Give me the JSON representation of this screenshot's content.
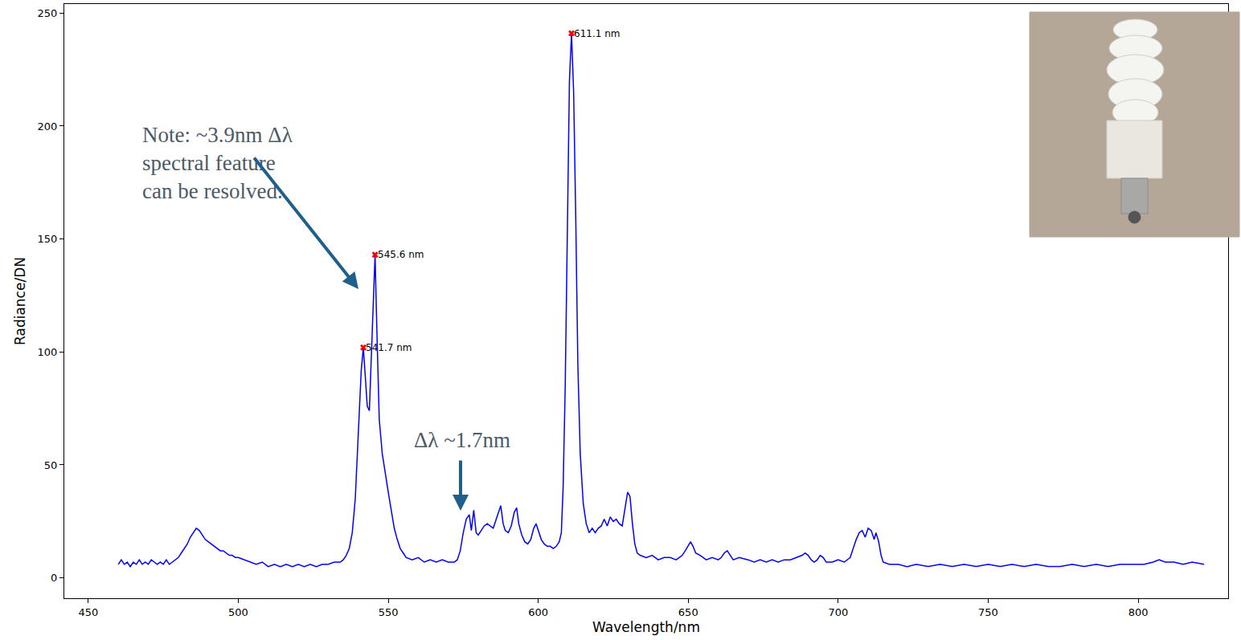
{
  "chart_data": {
    "type": "line",
    "x_label": "Wavelength/nm",
    "y_label": "Radiance/DN",
    "color": "#0000ff",
    "grid": false,
    "xlim": [
      442,
      830
    ],
    "ylim": [
      -9,
      254
    ],
    "xticks": [
      450,
      500,
      550,
      600,
      650,
      700,
      750,
      800
    ],
    "yticks": [
      0,
      50,
      100,
      150,
      200,
      250
    ],
    "x": [
      460,
      461,
      462,
      463,
      464,
      465,
      466,
      467,
      468,
      469,
      470,
      471,
      472,
      473,
      474,
      475,
      476,
      477,
      478,
      479,
      480,
      481,
      482,
      483,
      484,
      485,
      486,
      487,
      488,
      489,
      490,
      491,
      492,
      493,
      494,
      495,
      496,
      497,
      498,
      499,
      500,
      502,
      504,
      506,
      508,
      510,
      512,
      514,
      516,
      518,
      520,
      522,
      524,
      526,
      528,
      530,
      532,
      534,
      535,
      536,
      537,
      538,
      539,
      540,
      541,
      541.7,
      542.3,
      543,
      543.7,
      544.3,
      545,
      545.6,
      546.2,
      547,
      548,
      549,
      550,
      551,
      552,
      553,
      554,
      555,
      556,
      558,
      560,
      562,
      564,
      566,
      568,
      570,
      572,
      573,
      574,
      575,
      576,
      577,
      577.7,
      578.5,
      579.3,
      580,
      581,
      582,
      583,
      584,
      585,
      586,
      587,
      587.5,
      588.3,
      589,
      590,
      591,
      592,
      592.8,
      593.5,
      594.5,
      595.5,
      596.5,
      597.5,
      598.5,
      599.3,
      600,
      601,
      602,
      603,
      604,
      605,
      606,
      607,
      607.7,
      608.3,
      609,
      609.7,
      610.4,
      611.1,
      611.8,
      612.5,
      613.2,
      614,
      615,
      616,
      617,
      618,
      619,
      620,
      621,
      622,
      623,
      624,
      625,
      626,
      627,
      628,
      629,
      629.8,
      630.6,
      631.4,
      632.2,
      633,
      634,
      636,
      638,
      640,
      642,
      644,
      646,
      648,
      649,
      650,
      650.8,
      651.6,
      652.5,
      654,
      656,
      658,
      660,
      661,
      662,
      663,
      664,
      665,
      667,
      670,
      672,
      674,
      676,
      678,
      680,
      682,
      684,
      686,
      688,
      689,
      690,
      691,
      692,
      693,
      694,
      695,
      696,
      698,
      700,
      702,
      704,
      705,
      706,
      707,
      708,
      709,
      710,
      711,
      712,
      712.6,
      713.5,
      714.3,
      715,
      717,
      720,
      723,
      726,
      730,
      734,
      738,
      742,
      746,
      750,
      754,
      758,
      762,
      766,
      770,
      774,
      778,
      782,
      786,
      790,
      794,
      798,
      802,
      805,
      807,
      809,
      812,
      815,
      818,
      822
    ],
    "values": [
      6,
      8,
      6,
      7,
      5,
      7,
      6,
      8,
      6,
      7,
      6,
      8,
      7,
      6,
      7,
      6,
      8,
      6,
      7,
      8,
      9,
      11,
      13,
      15,
      18,
      20,
      22,
      21,
      19,
      17,
      16,
      15,
      14,
      13,
      12,
      12,
      11,
      10,
      10,
      9,
      9,
      8,
      7,
      6,
      7,
      5,
      6,
      5,
      6,
      5,
      6,
      5,
      6,
      5,
      6,
      6,
      7,
      7,
      8,
      10,
      13,
      20,
      35,
      65,
      92,
      102,
      88,
      76,
      74,
      95,
      125,
      143,
      110,
      70,
      55,
      46,
      38,
      30,
      22,
      17,
      13,
      11,
      9,
      8,
      9,
      7,
      8,
      7,
      8,
      7,
      7,
      8,
      12,
      20,
      26,
      28,
      21,
      30,
      20,
      19,
      21,
      23,
      24,
      23,
      22,
      26,
      30,
      32,
      24,
      21,
      20,
      23,
      29,
      31,
      24,
      19,
      16,
      15,
      17,
      22,
      24,
      21,
      17,
      15,
      14,
      14,
      13,
      14,
      16,
      20,
      40,
      85,
      160,
      220,
      241,
      215,
      160,
      95,
      55,
      33,
      24,
      20,
      22,
      20,
      22,
      23,
      26,
      23,
      27,
      25,
      26,
      24,
      23,
      31,
      38,
      36,
      24,
      15,
      11,
      10,
      9,
      10,
      8,
      9,
      9,
      8,
      10,
      12,
      14,
      16,
      14,
      11,
      10,
      8,
      9,
      8,
      9,
      11,
      12,
      10,
      8,
      9,
      8,
      7,
      8,
      7,
      8,
      7,
      8,
      8,
      9,
      10,
      11,
      10,
      8,
      7,
      8,
      10,
      9,
      7,
      7,
      8,
      7,
      9,
      13,
      17,
      20,
      21,
      18,
      22,
      21,
      17,
      20,
      16,
      10,
      7,
      6,
      6,
      5,
      6,
      5,
      6,
      5,
      6,
      5,
      6,
      5,
      6,
      5,
      6,
      5,
      5,
      6,
      5,
      6,
      5,
      6,
      6,
      6,
      7,
      8,
      7,
      7,
      6,
      7,
      6
    ],
    "peaks": {
      "x": [
        611.1,
        545.6,
        541.7
      ],
      "y": [
        241,
        143,
        102
      ],
      "labels": [
        "611.1 nm",
        "545.6 nm",
        "541.7 nm"
      ],
      "color": "#ff0000",
      "marker": "x"
    },
    "annotations": [
      {
        "text": [
          "Note: ~3.9nm Δλ",
          "spectral feature",
          "can be resolved."
        ]
      },
      {
        "text": "Δλ ~1.7nm"
      }
    ]
  }
}
